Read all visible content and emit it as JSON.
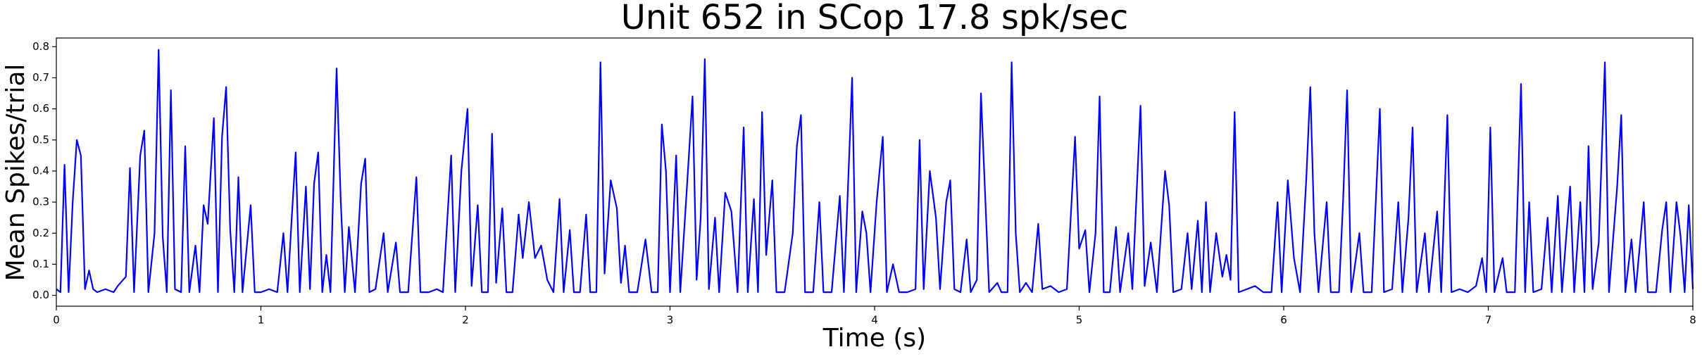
{
  "chart_data": {
    "type": "line",
    "title": "Unit 652 in SCop 17.8 spk/sec",
    "x_label": "Time (s)",
    "y_label": "Mean Spikes/trial",
    "color": "#0000ff",
    "x": [
      0,
      0.02,
      0.04,
      0.06,
      0.08,
      0.1,
      0.12,
      0.14,
      0.16,
      0.18,
      0.2,
      0.24,
      0.28,
      0.3,
      0.34,
      0.36,
      0.38,
      0.41,
      0.43,
      0.45,
      0.48,
      0.5,
      0.52,
      0.54,
      0.56,
      0.58,
      0.61,
      0.63,
      0.65,
      0.68,
      0.7,
      0.72,
      0.74,
      0.77,
      0.79,
      0.81,
      0.83,
      0.85,
      0.87,
      0.89,
      0.91,
      0.93,
      0.95,
      0.97,
      1.0,
      1.04,
      1.08,
      1.11,
      1.13,
      1.15,
      1.17,
      1.19,
      1.22,
      1.24,
      1.26,
      1.28,
      1.3,
      1.32,
      1.34,
      1.37,
      1.39,
      1.41,
      1.43,
      1.46,
      1.49,
      1.51,
      1.53,
      1.56,
      1.6,
      1.62,
      1.66,
      1.68,
      1.72,
      1.76,
      1.78,
      1.82,
      1.86,
      1.89,
      1.93,
      1.95,
      1.98,
      2.01,
      2.03,
      2.06,
      2.08,
      2.11,
      2.13,
      2.15,
      2.18,
      2.2,
      2.23,
      2.26,
      2.28,
      2.31,
      2.34,
      2.37,
      2.4,
      2.43,
      2.46,
      2.48,
      2.51,
      2.53,
      2.56,
      2.59,
      2.61,
      2.64,
      2.66,
      2.68,
      2.71,
      2.74,
      2.76,
      2.78,
      2.8,
      2.84,
      2.88,
      2.91,
      2.94,
      2.96,
      2.98,
      3.0,
      3.03,
      3.05,
      3.08,
      3.11,
      3.13,
      3.15,
      3.17,
      3.19,
      3.22,
      3.24,
      3.27,
      3.3,
      3.33,
      3.36,
      3.38,
      3.41,
      3.43,
      3.45,
      3.47,
      3.5,
      3.52,
      3.56,
      3.6,
      3.62,
      3.64,
      3.66,
      3.7,
      3.73,
      3.75,
      3.79,
      3.83,
      3.85,
      3.88,
      3.89,
      3.91,
      3.94,
      3.96,
      3.98,
      4.01,
      4.04,
      4.06,
      4.09,
      4.12,
      4.16,
      4.2,
      4.22,
      4.24,
      4.27,
      4.3,
      4.32,
      4.35,
      4.37,
      4.39,
      4.42,
      4.45,
      4.47,
      4.5,
      4.52,
      4.54,
      4.56,
      4.6,
      4.62,
      4.65,
      4.67,
      4.69,
      4.71,
      4.74,
      4.77,
      4.8,
      4.82,
      4.86,
      4.9,
      4.94,
      4.98,
      5.0,
      5.03,
      5.05,
      5.08,
      5.1,
      5.12,
      5.15,
      5.18,
      5.2,
      5.24,
      5.26,
      5.3,
      5.32,
      5.35,
      5.38,
      5.42,
      5.44,
      5.46,
      5.5,
      5.53,
      5.55,
      5.58,
      5.6,
      5.62,
      5.64,
      5.67,
      5.7,
      5.72,
      5.74,
      5.76,
      5.78,
      5.82,
      5.86,
      5.9,
      5.94,
      5.97,
      5.99,
      6.02,
      6.05,
      6.08,
      6.11,
      6.13,
      6.15,
      6.17,
      6.21,
      6.23,
      6.27,
      6.29,
      6.31,
      6.33,
      6.37,
      6.39,
      6.43,
      6.45,
      6.47,
      6.49,
      6.53,
      6.56,
      6.58,
      6.61,
      6.63,
      6.65,
      6.69,
      6.71,
      6.75,
      6.77,
      6.8,
      6.82,
      6.86,
      6.9,
      6.94,
      6.97,
      6.99,
      7.01,
      7.03,
      7.07,
      7.09,
      7.13,
      7.16,
      7.18,
      7.2,
      7.22,
      7.26,
      7.29,
      7.31,
      7.34,
      7.36,
      7.4,
      7.42,
      7.45,
      7.47,
      7.49,
      7.51,
      7.54,
      7.57,
      7.59,
      7.63,
      7.65,
      7.67,
      7.7,
      7.72,
      7.76,
      7.78,
      7.82,
      7.85,
      7.87,
      7.89,
      7.92,
      7.94,
      7.96,
      7.98,
      8.0
    ],
    "values": [
      0.02,
      0.01,
      0.42,
      0.01,
      0.3,
      0.5,
      0.45,
      0.02,
      0.08,
      0.02,
      0.01,
      0.02,
      0.01,
      0.03,
      0.06,
      0.41,
      0.01,
      0.45,
      0.53,
      0.01,
      0.2,
      0.79,
      0.19,
      0.01,
      0.66,
      0.02,
      0.01,
      0.48,
      0.01,
      0.16,
      0.01,
      0.29,
      0.23,
      0.57,
      0.01,
      0.51,
      0.67,
      0.21,
      0.01,
      0.38,
      0.01,
      0.15,
      0.29,
      0.01,
      0.01,
      0.02,
      0.01,
      0.2,
      0.01,
      0.24,
      0.46,
      0.01,
      0.35,
      0.02,
      0.36,
      0.46,
      0.01,
      0.13,
      0.01,
      0.73,
      0.31,
      0.01,
      0.22,
      0.01,
      0.36,
      0.44,
      0.01,
      0.02,
      0.2,
      0.01,
      0.17,
      0.01,
      0.01,
      0.38,
      0.01,
      0.01,
      0.02,
      0.01,
      0.45,
      0.01,
      0.4,
      0.6,
      0.03,
      0.29,
      0.01,
      0.01,
      0.52,
      0.04,
      0.28,
      0.01,
      0.01,
      0.26,
      0.12,
      0.3,
      0.12,
      0.16,
      0.05,
      0.01,
      0.31,
      0.01,
      0.21,
      0.01,
      0.01,
      0.26,
      0.01,
      0.01,
      0.75,
      0.07,
      0.37,
      0.28,
      0.04,
      0.16,
      0.01,
      0.01,
      0.18,
      0.01,
      0.01,
      0.55,
      0.4,
      0.01,
      0.45,
      0.01,
      0.32,
      0.64,
      0.05,
      0.25,
      0.76,
      0.02,
      0.25,
      0.01,
      0.33,
      0.27,
      0.01,
      0.54,
      0.01,
      0.31,
      0.01,
      0.59,
      0.13,
      0.37,
      0.01,
      0.01,
      0.2,
      0.48,
      0.58,
      0.01,
      0.01,
      0.3,
      0.01,
      0.01,
      0.32,
      0.01,
      0.52,
      0.7,
      0.01,
      0.27,
      0.2,
      0.01,
      0.3,
      0.51,
      0.01,
      0.1,
      0.01,
      0.01,
      0.02,
      0.5,
      0.02,
      0.4,
      0.25,
      0.02,
      0.3,
      0.37,
      0.02,
      0.01,
      0.18,
      0.01,
      0.05,
      0.65,
      0.33,
      0.01,
      0.04,
      0.01,
      0.01,
      0.75,
      0.2,
      0.01,
      0.04,
      0.01,
      0.23,
      0.02,
      0.03,
      0.01,
      0.02,
      0.51,
      0.15,
      0.21,
      0.01,
      0.2,
      0.64,
      0.01,
      0.01,
      0.22,
      0.01,
      0.2,
      0.02,
      0.61,
      0.03,
      0.17,
      0.01,
      0.4,
      0.29,
      0.01,
      0.02,
      0.2,
      0.02,
      0.24,
      0.01,
      0.3,
      0.01,
      0.2,
      0.06,
      0.13,
      0.05,
      0.59,
      0.01,
      0.02,
      0.03,
      0.01,
      0.01,
      0.3,
      0.01,
      0.37,
      0.12,
      0.01,
      0.37,
      0.67,
      0.2,
      0.01,
      0.3,
      0.01,
      0.01,
      0.3,
      0.66,
      0.01,
      0.2,
      0.01,
      0.01,
      0.3,
      0.6,
      0.01,
      0.02,
      0.3,
      0.01,
      0.25,
      0.54,
      0.01,
      0.2,
      0.01,
      0.27,
      0.01,
      0.58,
      0.01,
      0.02,
      0.01,
      0.03,
      0.12,
      0.01,
      0.54,
      0.01,
      0.12,
      0.01,
      0.01,
      0.68,
      0.01,
      0.3,
      0.01,
      0.02,
      0.25,
      0.01,
      0.32,
      0.01,
      0.35,
      0.01,
      0.3,
      0.01,
      0.48,
      0.02,
      0.17,
      0.75,
      0.01,
      0.35,
      0.58,
      0.01,
      0.18,
      0.01,
      0.3,
      0.01,
      0.01,
      0.21,
      0.3,
      0.01,
      0.3,
      0.19,
      0.01,
      0.29,
      0.02
    ],
    "xlim": [
      0,
      8
    ],
    "xticks": [
      0,
      1,
      2,
      3,
      4,
      5,
      6,
      7,
      8
    ],
    "ylim": [
      -0.035,
      0.828
    ],
    "yticks": [
      {
        "value": 0,
        "label": "0.0"
      },
      0.1,
      0.2,
      0.3,
      0.4,
      0.5,
      0.6,
      0.7,
      0.8
    ],
    "grid": false
  }
}
